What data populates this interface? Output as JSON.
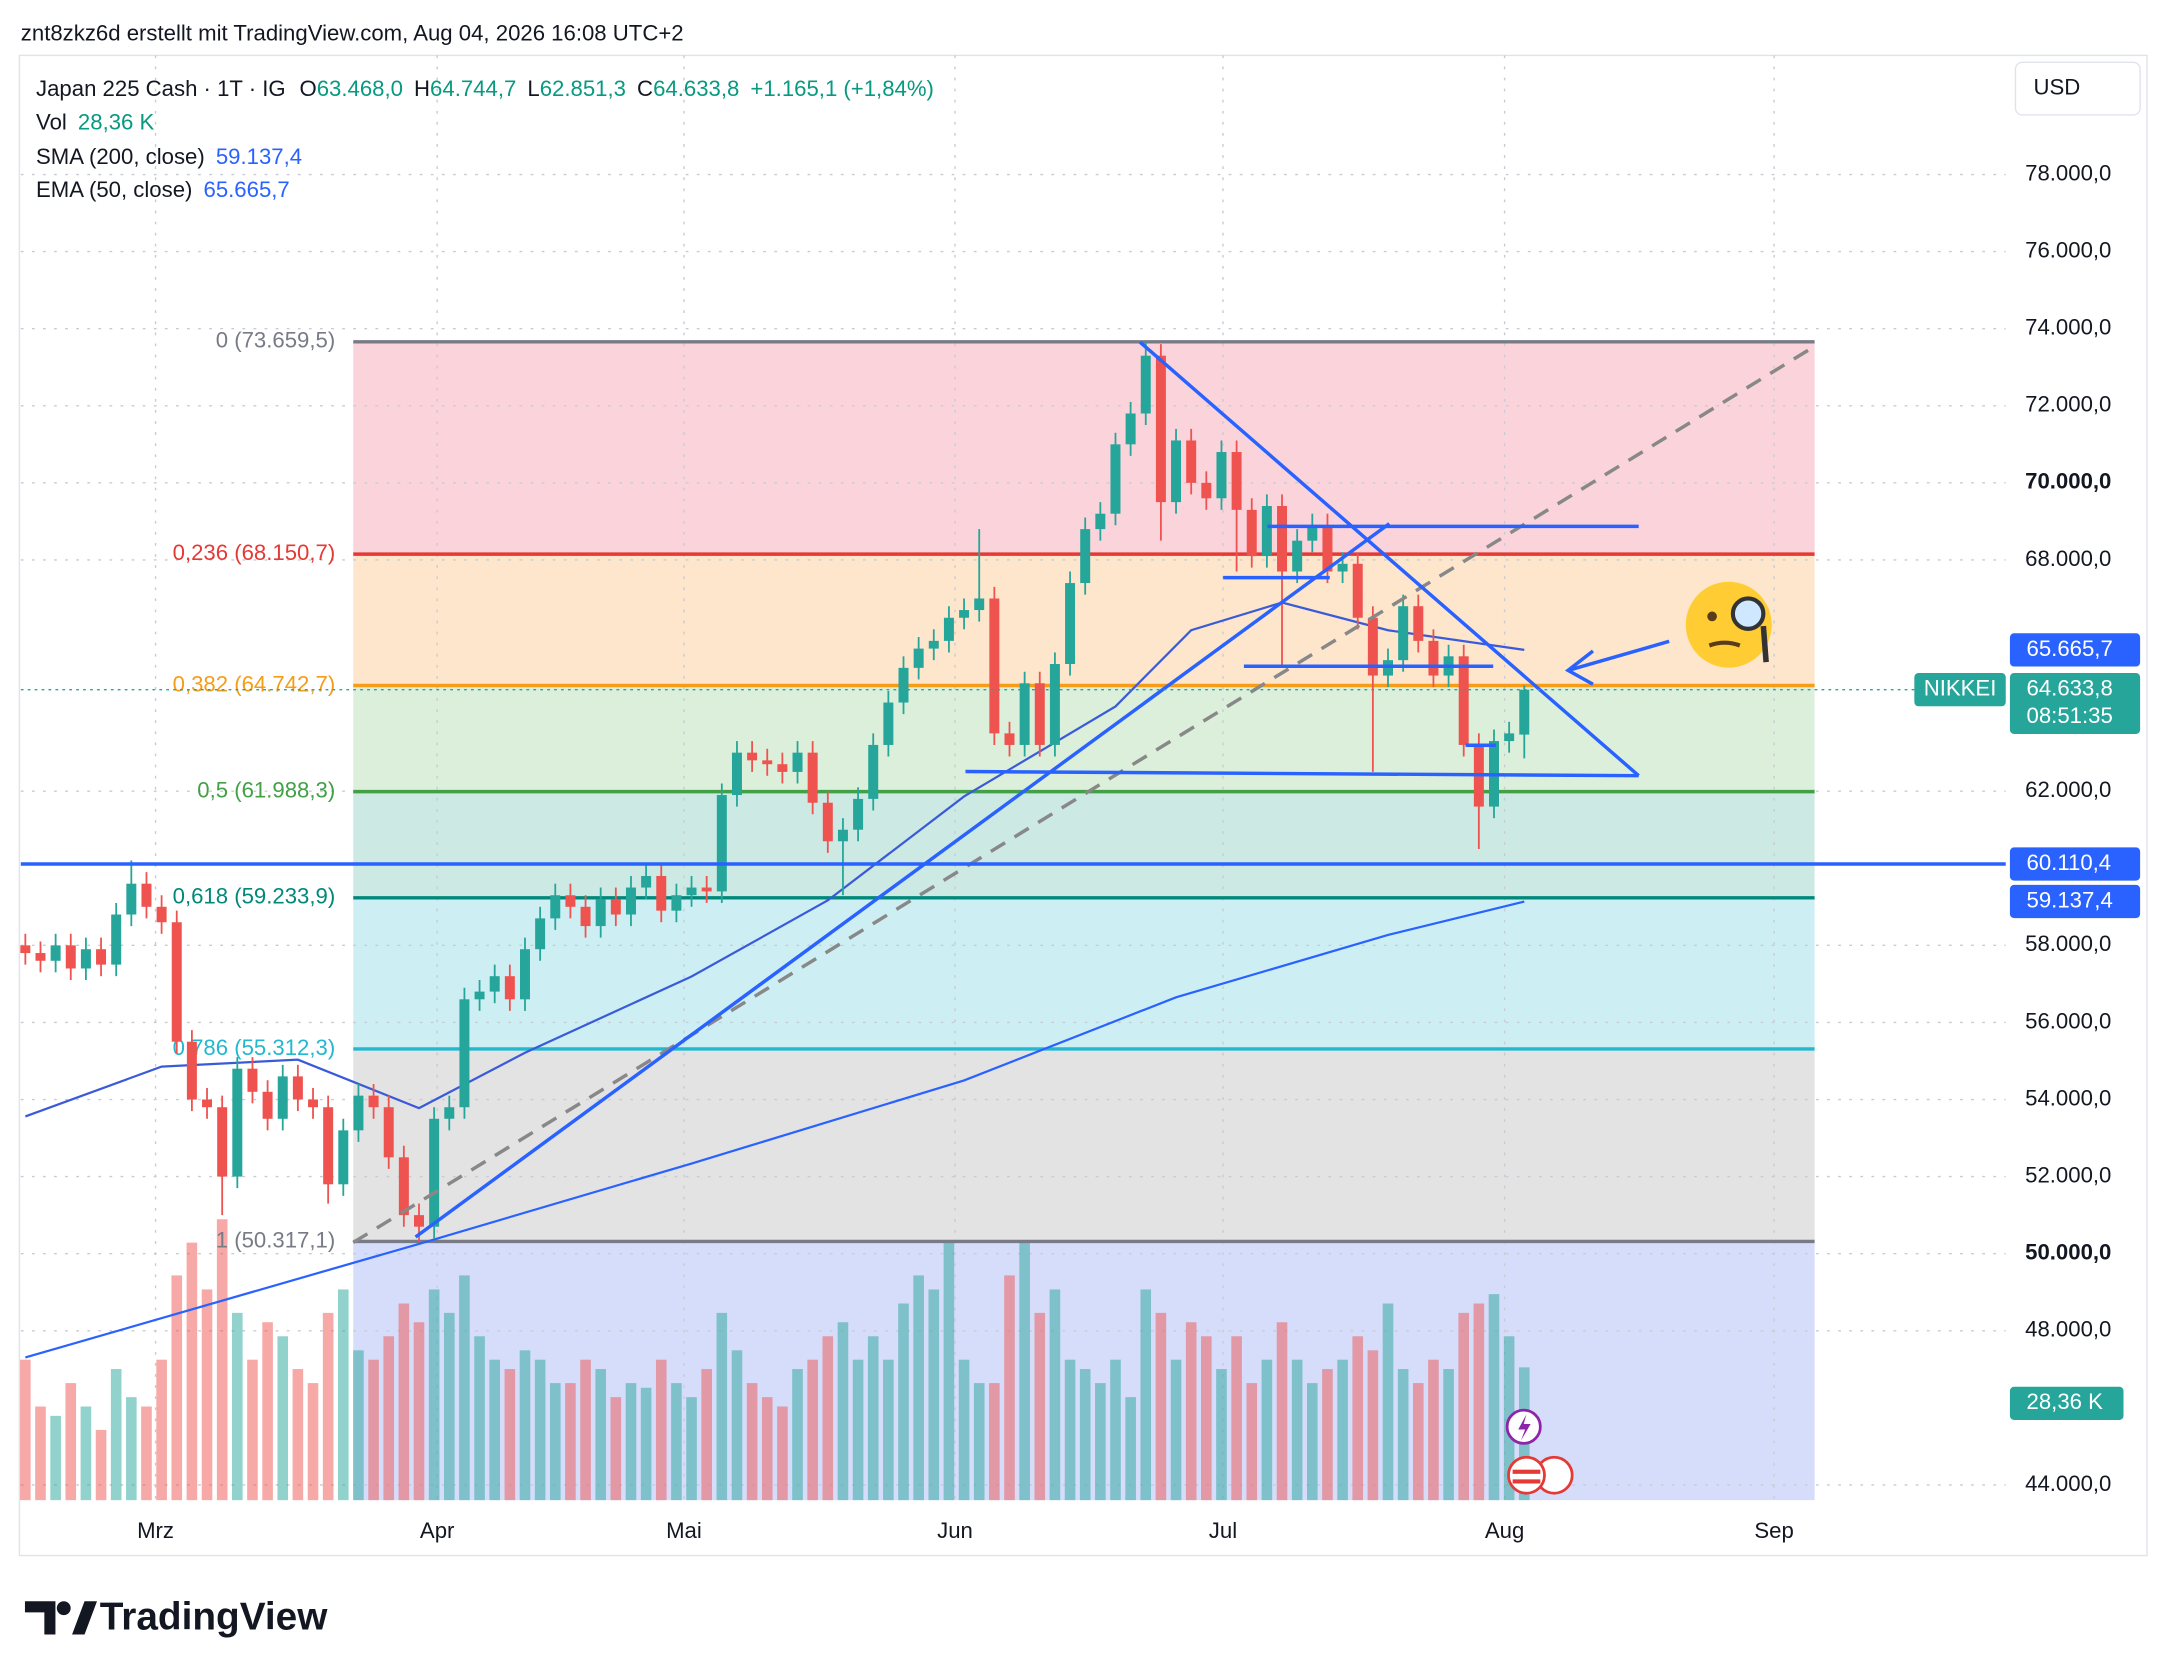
{
  "header": {
    "credit": "znt8zkz6d erstellt mit TradingView.com, Aug 04, 2026 16:08 UTC+2",
    "logo": "TradingView",
    "currency": "USD"
  },
  "chart_data": {
    "type": "candlestick",
    "symbol": "Japan 225 Cash · 1T · IG",
    "ohlc_legend": [
      {
        "key": "O",
        "text": "63.468,0"
      },
      {
        "key": "H",
        "text": "64.744,7"
      },
      {
        "key": "L",
        "text": "62.851,3"
      },
      {
        "key": "C",
        "text": "64.633,8"
      }
    ],
    "change": "+1.165,1 (+1,84%)",
    "symbol_tag": "NIKKEI",
    "last_price_label": "64.633,8",
    "countdown": "08:51:35",
    "up_color": "#26a69a",
    "down_color": "#ef5350",
    "open": [
      58000,
      57800,
      57600,
      58000,
      57400,
      57900,
      57500,
      58800,
      59600,
      59000,
      58600,
      55500,
      54000,
      53800,
      52000,
      54800,
      54200,
      53500,
      54600,
      54000,
      53800,
      51800,
      53200,
      54100,
      53800,
      52500,
      51000,
      50700,
      53500,
      53800,
      56600,
      56800,
      57200,
      56600,
      57900,
      58700,
      59300,
      59000,
      58500,
      59200,
      58800,
      59500,
      59800,
      58900,
      59300,
      59500,
      59400,
      61900,
      63000,
      62800,
      62700,
      62500,
      63000,
      61700,
      60700,
      61000,
      61800,
      63200,
      64300,
      65200,
      65700,
      65900,
      66500,
      66700,
      67000,
      63500,
      63200,
      64800,
      63200,
      65300,
      67400,
      68800,
      69200,
      71000,
      71800,
      73300,
      69500,
      71100,
      70000,
      69600,
      70800,
      69300,
      68100,
      69400,
      67700,
      68500,
      68900,
      67700,
      67900,
      66500,
      65000,
      65400,
      66800,
      65900,
      65000,
      65500,
      63200,
      61600,
      63300,
      63468
    ],
    "high": [
      58300,
      58100,
      58300,
      58300,
      58200,
      58200,
      59100,
      60200,
      59900,
      59300,
      58900,
      55800,
      54300,
      54100,
      55100,
      55100,
      54500,
      54900,
      54900,
      54300,
      54100,
      53500,
      54400,
      54400,
      54100,
      52800,
      51300,
      53800,
      54100,
      56900,
      57100,
      57500,
      57500,
      58200,
      59000,
      59600,
      59600,
      59300,
      59500,
      59500,
      59800,
      60100,
      60100,
      59600,
      59800,
      59800,
      62200,
      63300,
      63300,
      63100,
      63000,
      63300,
      63300,
      62000,
      61300,
      62100,
      63500,
      64600,
      65500,
      66000,
      66200,
      66800,
      67000,
      68800,
      67300,
      63800,
      65100,
      65100,
      65600,
      67700,
      69100,
      69500,
      71300,
      72100,
      73660,
      73600,
      71400,
      71400,
      70300,
      71100,
      71100,
      69600,
      69700,
      69700,
      68800,
      69200,
      69200,
      68200,
      68200,
      66800,
      65700,
      67100,
      67100,
      66200,
      65800,
      65800,
      63500,
      63600,
      63800,
      64744.7
    ],
    "low": [
      57500,
      57300,
      57300,
      57100,
      57100,
      57200,
      57200,
      58500,
      58700,
      58300,
      55200,
      53700,
      53500,
      51000,
      51700,
      53900,
      53200,
      53200,
      53700,
      53500,
      51300,
      51500,
      52900,
      53500,
      52200,
      50700,
      50317,
      50400,
      53200,
      53500,
      56300,
      56500,
      56300,
      56300,
      57600,
      58400,
      58700,
      58200,
      58200,
      58500,
      58500,
      59200,
      58600,
      58600,
      59000,
      59100,
      59100,
      61600,
      62500,
      62400,
      62200,
      62200,
      61400,
      60400,
      59300,
      60700,
      61500,
      62900,
      64000,
      64900,
      65400,
      65600,
      66200,
      66400,
      63200,
      62900,
      62900,
      62900,
      62900,
      65000,
      67100,
      68500,
      68900,
      70700,
      71500,
      68500,
      69200,
      69700,
      69300,
      69300,
      67700,
      67800,
      67800,
      65200,
      67400,
      68200,
      67400,
      67400,
      66200,
      62500,
      64700,
      65100,
      65600,
      64700,
      64700,
      62900,
      60500,
      61300,
      63000,
      62851.3
    ],
    "close": [
      57800,
      57600,
      58000,
      57400,
      57900,
      57500,
      58800,
      59600,
      59000,
      58600,
      55500,
      54000,
      53800,
      52000,
      54800,
      54200,
      53500,
      54600,
      54000,
      53800,
      51800,
      53200,
      54100,
      53800,
      52500,
      51000,
      50700,
      53500,
      53800,
      56600,
      56800,
      57200,
      56600,
      57900,
      58700,
      59300,
      59000,
      58500,
      59200,
      58800,
      59500,
      59800,
      58900,
      59300,
      59500,
      59400,
      61900,
      63000,
      62800,
      62700,
      62500,
      63000,
      61700,
      60700,
      61000,
      61800,
      63200,
      64300,
      65200,
      65700,
      65900,
      66500,
      66700,
      67000,
      63500,
      63200,
      64800,
      63200,
      65300,
      67400,
      68800,
      69200,
      71000,
      71800,
      73300,
      69500,
      71100,
      70000,
      69600,
      70800,
      69300,
      68100,
      69400,
      67700,
      68500,
      68900,
      67700,
      67900,
      66500,
      65000,
      65400,
      66800,
      65900,
      65000,
      65500,
      63200,
      61600,
      63300,
      63500,
      64633.8
    ],
    "volume": {
      "name": "Vol",
      "label": "28,36 K",
      "ylim": [
        0,
        100
      ],
      "values": [
        30,
        20,
        18,
        25,
        20,
        15,
        28,
        22,
        20,
        30,
        48,
        55,
        45,
        60,
        40,
        30,
        38,
        35,
        28,
        25,
        40,
        45,
        32,
        30,
        35,
        42,
        38,
        45,
        40,
        48,
        35,
        30,
        28,
        32,
        30,
        25,
        25,
        30,
        28,
        22,
        25,
        24,
        30,
        25,
        22,
        28,
        40,
        32,
        25,
        22,
        20,
        28,
        30,
        35,
        38,
        30,
        35,
        30,
        42,
        48,
        45,
        55,
        30,
        25,
        25,
        48,
        55,
        40,
        45,
        30,
        28,
        25,
        30,
        22,
        45,
        40,
        30,
        38,
        35,
        28,
        35,
        25,
        30,
        38,
        30,
        25,
        28,
        30,
        35,
        32,
        42,
        28,
        25,
        30,
        28,
        40,
        42,
        44,
        35,
        28.36
      ]
    },
    "indicators": [
      {
        "name": "SMA (200, close)",
        "value_label": "59.137,4",
        "color": "#2962ff",
        "x": [
          0,
          26,
          44,
          62,
          76,
          90,
          99
        ],
        "values": [
          47307,
          50254,
          52339,
          54495,
          56652,
          58270,
          59137.4
        ]
      },
      {
        "name": "EMA (50, close)",
        "value_label": "65.665,7",
        "color": "#3a5bd9",
        "x": [
          0,
          9,
          18,
          26,
          33,
          44,
          53,
          62,
          72,
          77,
          83,
          90,
          99
        ],
        "values": [
          53561,
          54854,
          55034,
          53777,
          55214,
          57191,
          59167,
          61863,
          64199,
          66176,
          66895,
          66176,
          65665.7
        ]
      }
    ],
    "fib_levels": [
      {
        "value": 73659.5,
        "label": "0 (73.659,5)",
        "color": "#787b86",
        "fill": "#fad4da"
      },
      {
        "value": 68150.7,
        "label": "0,236 (68.150,7)",
        "color": "#e53935",
        "fill": "#fde6cc"
      },
      {
        "value": 64742.7,
        "label": "0,382 (64.742,7)",
        "color": "#f59d18",
        "fill": "#dcefdb"
      },
      {
        "value": 61988.3,
        "label": "0,5 (61.988,3)",
        "color": "#43a047",
        "fill": "#cde9e4"
      },
      {
        "value": 59233.9,
        "label": "0,618 (59.233,9)",
        "color": "#00897b",
        "fill": "#cdeff4"
      },
      {
        "value": 55312.3,
        "label": "0,786 (55.312,3)",
        "color": "#22b8cf",
        "fill": "#e3e3e3"
      },
      {
        "value": 50317.1,
        "label": "1 (50.317,1)",
        "color": "#787b86",
        "fill": "#d6ddfb"
      }
    ],
    "hline": {
      "value": 60110.4,
      "label": "60.110,4",
      "color": "#2962ff"
    },
    "xlim": [
      -0.3,
      130.8
    ],
    "xticks": [
      {
        "value": 8.6,
        "label": "Mrz"
      },
      {
        "value": 27.2,
        "label": "Apr"
      },
      {
        "value": 43.5,
        "label": "Mai"
      },
      {
        "value": 61.4,
        "label": "Jun"
      },
      {
        "value": 79.1,
        "label": "Jul"
      },
      {
        "value": 97.7,
        "label": "Aug"
      },
      {
        "value": 115.5,
        "label": "Sep"
      }
    ],
    "ylim": [
      43605,
      81091
    ],
    "yticks": [
      {
        "value": 78000,
        "label": "78.000,0"
      },
      {
        "value": 76000,
        "label": "76.000,0"
      },
      {
        "value": 74000,
        "label": "74.000,0"
      },
      {
        "value": 72000,
        "label": "72.000,0"
      },
      {
        "value": 70000,
        "label": "70.000,0",
        "bold": true
      },
      {
        "value": 68000,
        "label": "68.000,0"
      },
      {
        "value": 62000,
        "label": "62.000,0"
      },
      {
        "value": 58000,
        "label": "58.000,0"
      },
      {
        "value": 56000,
        "label": "56.000,0"
      },
      {
        "value": 54000,
        "label": "54.000,0"
      },
      {
        "value": 52000,
        "label": "52.000,0"
      },
      {
        "value": 50000,
        "label": "50.000,0",
        "bold": true
      },
      {
        "value": 48000,
        "label": "48.000,0"
      },
      {
        "value": 44000,
        "label": "44.000,0"
      }
    ],
    "grid": true
  }
}
